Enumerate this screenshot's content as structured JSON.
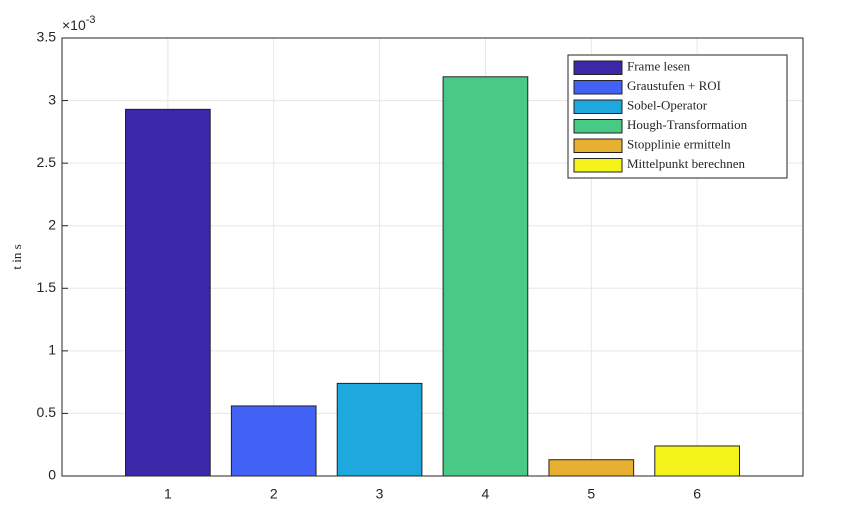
{
  "chart_data": {
    "type": "bar",
    "y_label": "t in s",
    "y_exponent_base": "×10",
    "y_exponent": "-3",
    "x": [
      1,
      2,
      3,
      4,
      5,
      6
    ],
    "values": [
      2.93,
      0.56,
      0.74,
      3.19,
      0.13,
      0.24
    ],
    "colors": [
      "#3b28a8",
      "#4262f5",
      "#1ea8de",
      "#48c985",
      "#e8b030",
      "#f5f41a"
    ],
    "legend_labels": [
      "Frame lesen",
      "Graustufen + ROI",
      "Sobel-Operator",
      "Hough-Transformation",
      "Stopplinie ermitteln",
      "Mittelpunkt berechnen"
    ],
    "xlim": [
      0,
      7
    ],
    "xticks": [
      1,
      2,
      3,
      4,
      5,
      6
    ],
    "ylim": [
      0,
      3.5
    ],
    "yticks": [
      0,
      0.5,
      1,
      1.5,
      2,
      2.5,
      3,
      3.5
    ],
    "grid": true,
    "legend_position": "top-right"
  }
}
